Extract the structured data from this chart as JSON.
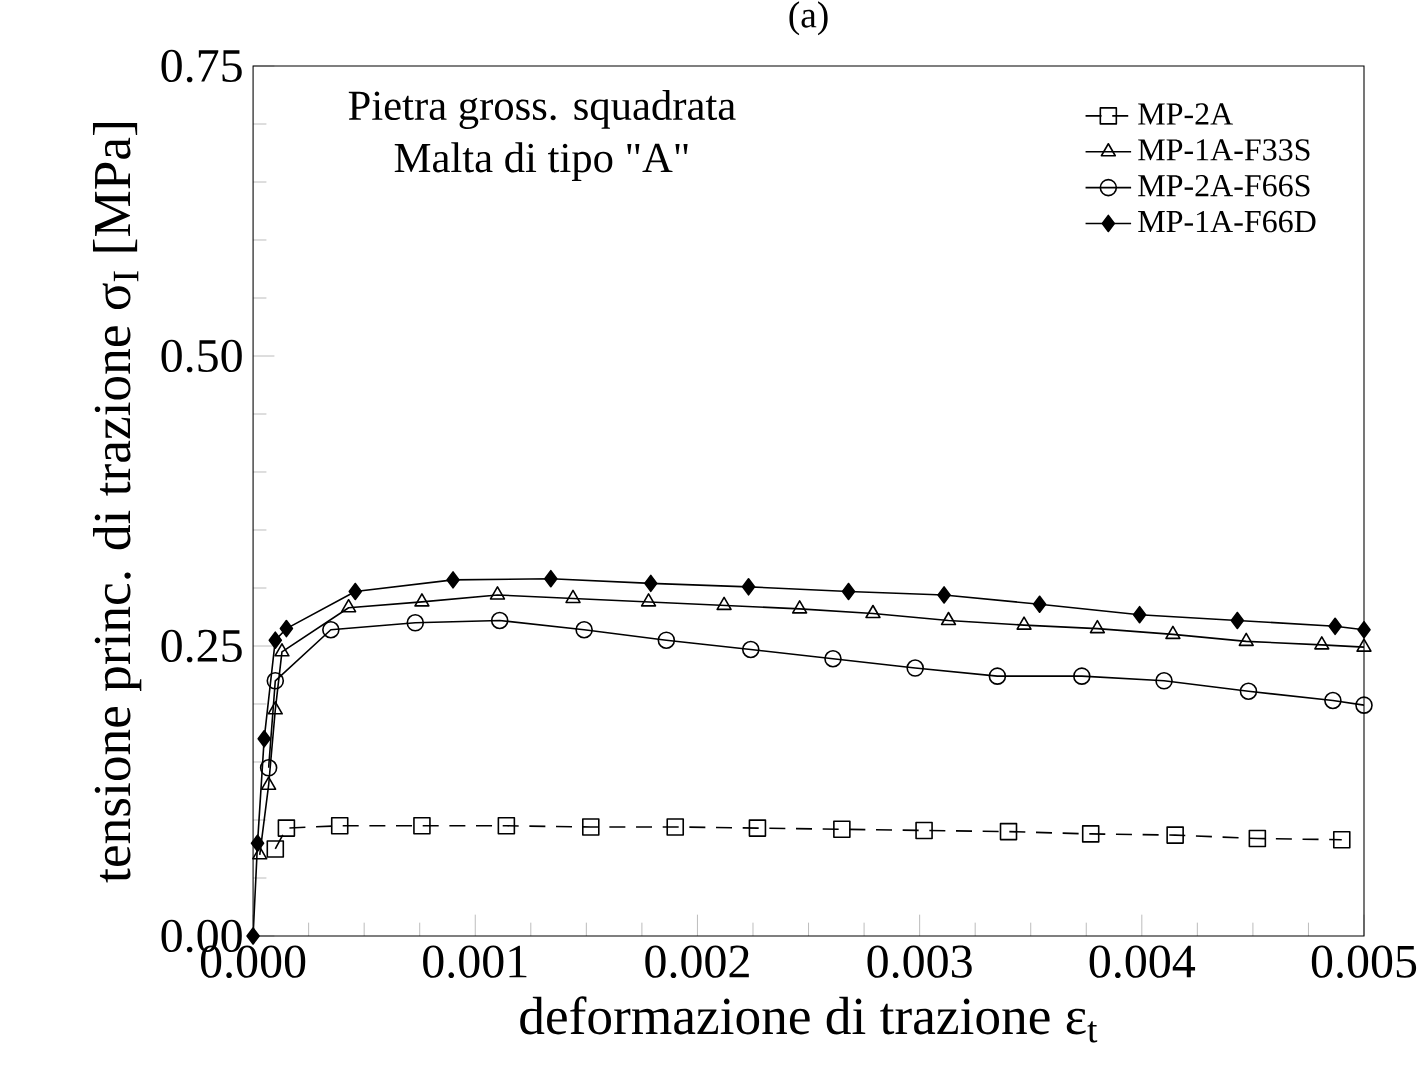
{
  "chart_data": {
    "type": "line",
    "title": "(a)",
    "xlabel": "deformazione di trazione ε$_{t}$",
    "ylabel": "tensione princ. di trazione σ$_{I}$ [MPa]",
    "annotations": [
      "Pietra gross. squadrata",
      "Malta di tipo \"A\""
    ],
    "xlim": [
      0,
      0.005
    ],
    "ylim": [
      0,
      0.75
    ],
    "xticks": [
      {
        "value": 0,
        "label": "0.000"
      },
      {
        "value": 0.001,
        "label": "0.001"
      },
      {
        "value": 0.002,
        "label": "0.002"
      },
      {
        "value": 0.003,
        "label": "0.003"
      },
      {
        "value": 0.004,
        "label": "0.004"
      },
      {
        "value": 0.005,
        "label": "0.005"
      }
    ],
    "yticks": [
      {
        "value": 0,
        "label": "0.00"
      },
      {
        "value": 0.25,
        "label": "0.25"
      },
      {
        "value": 0.5,
        "label": "0.50"
      },
      {
        "value": 0.75,
        "label": "0.75"
      }
    ],
    "grid": false,
    "legend": "top right",
    "series": [
      {
        "name": "MP-2A",
        "color": "#000000",
        "marker": "square",
        "line_style": "dashed",
        "x": [
          0.0001,
          0.00015,
          0.00039,
          0.00076,
          0.00114,
          0.00152,
          0.0019,
          0.00227,
          0.00265,
          0.00302,
          0.0034,
          0.00377,
          0.00415,
          0.00452,
          0.0049
        ],
        "values": [
          0.075,
          0.093,
          0.095,
          0.095,
          0.095,
          0.094,
          0.094,
          0.093,
          0.092,
          0.091,
          0.09,
          0.088,
          0.087,
          0.084,
          0.083
        ]
      },
      {
        "name": "MP-1A-F33S",
        "color": "#000000",
        "marker": "triangle",
        "line_style": "solid",
        "x": [
          3e-05,
          7e-05,
          0.0001,
          0.00013,
          0.00043,
          0.00076,
          0.0011,
          0.00144,
          0.00178,
          0.00212,
          0.00246,
          0.00279,
          0.00313,
          0.00347,
          0.0038,
          0.00414,
          0.00447,
          0.00481,
          0.005
        ],
        "values": [
          0.07,
          0.13,
          0.195,
          0.245,
          0.283,
          0.288,
          0.294,
          0.291,
          0.288,
          0.285,
          0.282,
          0.278,
          0.272,
          0.268,
          0.265,
          0.26,
          0.254,
          0.251,
          0.249
        ]
      },
      {
        "name": "MP-2A-F66S",
        "color": "#000000",
        "marker": "circle",
        "line_style": "solid",
        "x": [
          7e-05,
          0.0001,
          0.00035,
          0.00073,
          0.00111,
          0.00149,
          0.00186,
          0.00224,
          0.00261,
          0.00298,
          0.00335,
          0.00373,
          0.0041,
          0.00448,
          0.00486,
          0.005
        ],
        "values": [
          0.145,
          0.22,
          0.264,
          0.27,
          0.272,
          0.264,
          0.255,
          0.247,
          0.239,
          0.231,
          0.224,
          0.224,
          0.22,
          0.211,
          0.203,
          0.199
        ]
      },
      {
        "name": "MP-1A-F66D",
        "color": "#000000",
        "marker": "diamond",
        "line_style": "solid",
        "x": [
          0,
          2e-05,
          5e-05,
          0.0001,
          0.00015,
          0.00046,
          0.0009,
          0.00134,
          0.00179,
          0.00223,
          0.00268,
          0.00311,
          0.00354,
          0.00399,
          0.00443,
          0.00487,
          0.005
        ],
        "values": [
          0,
          0.08,
          0.17,
          0.255,
          0.265,
          0.297,
          0.307,
          0.308,
          0.304,
          0.301,
          0.297,
          0.294,
          0.286,
          0.277,
          0.272,
          0.267,
          0.264
        ]
      }
    ]
  }
}
